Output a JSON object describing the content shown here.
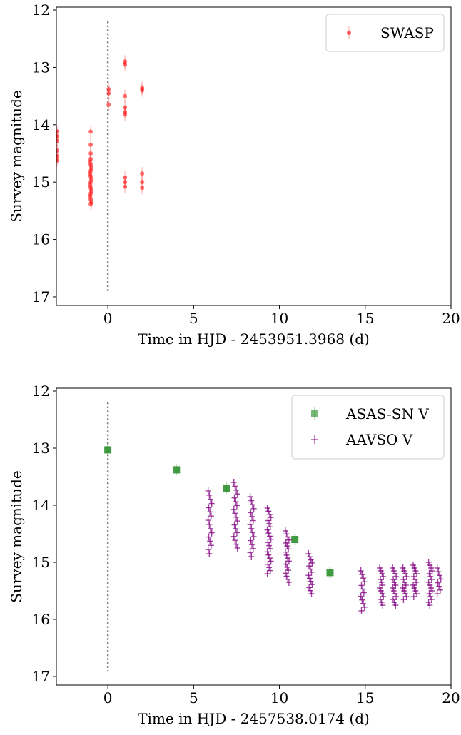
{
  "chart_data": [
    {
      "type": "scatter",
      "xlabel": "Time in HJD - 2453951.3968 (d)",
      "ylabel": "Survey magnitude",
      "xlim": [
        -3,
        20
      ],
      "ylim": [
        17.15,
        11.95
      ],
      "y_inverted": true,
      "xticks": [
        0,
        5,
        10,
        15,
        20
      ],
      "yticks": [
        12,
        13,
        14,
        15,
        16,
        17
      ],
      "legend_position": "top-right",
      "reference_line_x": 0,
      "series": [
        {
          "name": "SWASP",
          "marker": "circle",
          "color": "#ff0000",
          "points": [
            [
              -2.95,
              14.12
            ],
            [
              -2.95,
              14.2
            ],
            [
              -2.95,
              14.28
            ],
            [
              -2.95,
              14.45
            ],
            [
              -2.95,
              14.55
            ],
            [
              -2.95,
              14.62
            ],
            [
              -1.0,
              14.12
            ],
            [
              -1.0,
              14.35
            ],
            [
              -1.0,
              14.5
            ],
            [
              -1.0,
              14.6
            ],
            [
              -1.0,
              14.7
            ],
            [
              -1.0,
              14.8
            ],
            [
              -1.0,
              14.9
            ],
            [
              -1.0,
              15.0
            ],
            [
              -1.0,
              15.1
            ],
            [
              -1.0,
              15.2
            ],
            [
              -1.0,
              15.3
            ],
            [
              -1.0,
              15.38
            ],
            [
              -1.05,
              14.65
            ],
            [
              -1.05,
              14.85
            ],
            [
              -1.05,
              15.05
            ],
            [
              -1.05,
              15.25
            ],
            [
              -0.95,
              14.75
            ],
            [
              -0.95,
              14.95
            ],
            [
              -0.95,
              15.15
            ],
            [
              -0.95,
              15.35
            ],
            [
              0.05,
              13.38
            ],
            [
              0.05,
              13.45
            ],
            [
              0.05,
              13.65
            ],
            [
              1.0,
              12.9
            ],
            [
              1.0,
              12.95
            ],
            [
              1.0,
              13.5
            ],
            [
              1.0,
              13.7
            ],
            [
              1.0,
              13.78
            ],
            [
              1.0,
              13.82
            ],
            [
              1.0,
              14.92
            ],
            [
              1.0,
              15.0
            ],
            [
              1.0,
              15.08
            ],
            [
              2.0,
              13.36
            ],
            [
              2.0,
              13.4
            ],
            [
              2.0,
              14.85
            ],
            [
              2.0,
              15.0
            ],
            [
              2.0,
              15.1
            ]
          ]
        }
      ]
    },
    {
      "type": "scatter",
      "xlabel": "Time in HJD - 2457538.0174 (d)",
      "ylabel": "Survey magnitude",
      "xlim": [
        -3,
        20
      ],
      "ylim": [
        17.15,
        11.95
      ],
      "y_inverted": true,
      "xticks": [
        0,
        5,
        10,
        15,
        20
      ],
      "yticks": [
        12,
        13,
        14,
        15,
        16,
        17
      ],
      "legend_position": "top-right",
      "reference_line_x": 0,
      "series": [
        {
          "name": "ASAS-SN V",
          "marker": "square",
          "color": "#228b22",
          "points": [
            [
              0.0,
              13.03
            ],
            [
              4.0,
              13.38
            ],
            [
              6.9,
              13.7
            ],
            [
              10.9,
              14.6
            ],
            [
              12.95,
              15.18
            ]
          ]
        },
        {
          "name": "AAVSO V",
          "marker": "plus",
          "color": "#800080",
          "clusters": [
            {
              "x": 5.95,
              "y_min": 13.75,
              "y_max": 14.85,
              "count": 16
            },
            {
              "x": 7.45,
              "y_min": 13.6,
              "y_max": 14.75,
              "count": 18
            },
            {
              "x": 8.4,
              "y_min": 13.85,
              "y_max": 14.9,
              "count": 16
            },
            {
              "x": 9.4,
              "y_min": 14.05,
              "y_max": 15.2,
              "count": 22
            },
            {
              "x": 10.45,
              "y_min": 14.45,
              "y_max": 15.35,
              "count": 18
            },
            {
              "x": 11.8,
              "y_min": 14.85,
              "y_max": 15.55,
              "count": 14
            },
            {
              "x": 14.85,
              "y_min": 15.15,
              "y_max": 15.85,
              "count": 12
            },
            {
              "x": 15.95,
              "y_min": 15.1,
              "y_max": 15.75,
              "count": 14
            },
            {
              "x": 16.7,
              "y_min": 15.1,
              "y_max": 15.75,
              "count": 14
            },
            {
              "x": 17.3,
              "y_min": 15.1,
              "y_max": 15.65,
              "count": 12
            },
            {
              "x": 17.9,
              "y_min": 15.05,
              "y_max": 15.6,
              "count": 12
            },
            {
              "x": 18.8,
              "y_min": 15.0,
              "y_max": 15.75,
              "count": 16
            },
            {
              "x": 19.3,
              "y_min": 15.1,
              "y_max": 15.55,
              "count": 8
            }
          ]
        }
      ]
    }
  ]
}
